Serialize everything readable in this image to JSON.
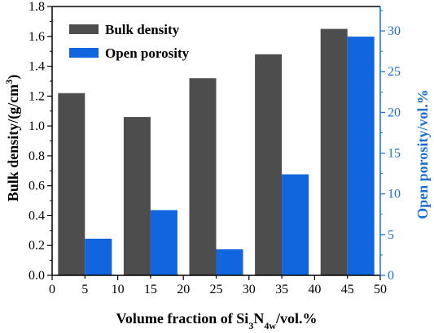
{
  "chart_data": {
    "type": "bar",
    "x_axis": {
      "label_prefix": "Volume fraction of Si",
      "label_sub1": "3",
      "label_mid": "N",
      "label_sub2": "4w",
      "label_suffix": "/vol.%",
      "range": [
        0,
        50
      ],
      "ticks": [
        "0",
        "5",
        "10",
        "15",
        "20",
        "25",
        "30",
        "35",
        "40",
        "45",
        "50"
      ]
    },
    "y_left": {
      "label_main": "Bulk density/(g/cm",
      "label_sup": "3",
      "label_end": ")",
      "range": [
        0.0,
        1.8
      ],
      "ticks": [
        "0.0",
        "0.2",
        "0.4",
        "0.6",
        "0.8",
        "1.0",
        "1.2",
        "1.4",
        "1.6",
        "1.8"
      ],
      "color": "#000000"
    },
    "y_right": {
      "label": "Open porosity/vol.%",
      "range": [
        0,
        33
      ],
      "ticks": [
        "0",
        "5",
        "10",
        "15",
        "20",
        "25",
        "30"
      ],
      "color": "#1a6fd6"
    },
    "legend": {
      "position": "top-left",
      "items": [
        {
          "name": "Bulk density",
          "color": "#4d4d4d"
        },
        {
          "name": "Open porosity",
          "color": "#1166e0"
        }
      ]
    },
    "series": [
      {
        "name": "Bulk density",
        "axis": "left",
        "color": "#4d4d4d",
        "x": [
          5,
          15,
          25,
          35,
          45
        ],
        "values": [
          1.22,
          1.06,
          1.32,
          1.48,
          1.65
        ]
      },
      {
        "name": "Open porosity",
        "axis": "right",
        "color": "#1166e0",
        "x": [
          5,
          15,
          25,
          35,
          45
        ],
        "values": [
          4.5,
          8.0,
          3.2,
          12.4,
          29.3
        ]
      }
    ]
  }
}
